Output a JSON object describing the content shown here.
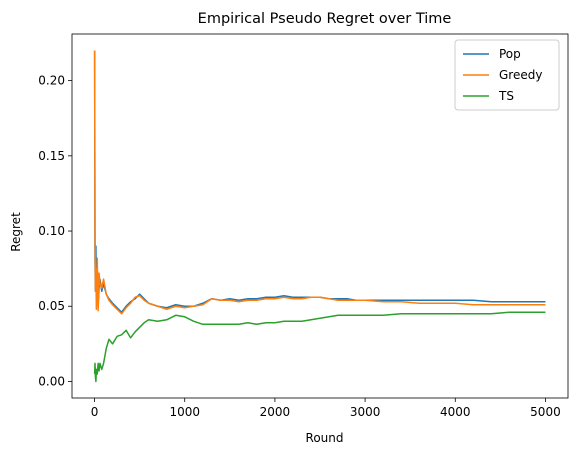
{
  "chart_data": {
    "type": "line",
    "title": "Empirical Pseudo Regret over Time",
    "xlabel": "Round",
    "ylabel": "Regret",
    "xlim": [
      -250,
      5250
    ],
    "ylim": [
      -0.011,
      0.231
    ],
    "xticks": [
      0,
      1000,
      2000,
      3000,
      4000,
      5000
    ],
    "xtick_labels": [
      "0",
      "1000",
      "2000",
      "3000",
      "4000",
      "5000"
    ],
    "yticks": [
      0.0,
      0.05,
      0.1,
      0.15,
      0.2
    ],
    "ytick_labels": [
      "0.00",
      "0.05",
      "0.10",
      "0.15",
      "0.20"
    ],
    "grid": false,
    "legend_position": "top-right",
    "series": [
      {
        "name": "Pop",
        "color": "#1f77b4",
        "x": [
          1,
          5,
          10,
          15,
          20,
          30,
          40,
          50,
          60,
          80,
          100,
          130,
          160,
          200,
          250,
          300,
          350,
          400,
          450,
          500,
          550,
          600,
          700,
          800,
          900,
          1000,
          1100,
          1200,
          1300,
          1400,
          1500,
          1600,
          1700,
          1800,
          1900,
          2000,
          2100,
          2200,
          2300,
          2400,
          2500,
          2600,
          2700,
          2800,
          2900,
          3000,
          3200,
          3400,
          3600,
          3800,
          4000,
          4200,
          4400,
          4600,
          4800,
          5000
        ],
        "y": [
          0.22,
          0.08,
          0.06,
          0.09,
          0.055,
          0.07,
          0.05,
          0.062,
          0.068,
          0.06,
          0.065,
          0.058,
          0.055,
          0.052,
          0.049,
          0.046,
          0.05,
          0.053,
          0.055,
          0.058,
          0.055,
          0.052,
          0.05,
          0.049,
          0.051,
          0.05,
          0.05,
          0.052,
          0.055,
          0.054,
          0.055,
          0.054,
          0.055,
          0.055,
          0.056,
          0.056,
          0.057,
          0.056,
          0.056,
          0.056,
          0.056,
          0.055,
          0.055,
          0.055,
          0.054,
          0.054,
          0.054,
          0.054,
          0.054,
          0.054,
          0.054,
          0.054,
          0.053,
          0.053,
          0.053,
          0.053
        ]
      },
      {
        "name": "Greedy",
        "color": "#ff7f0e",
        "x": [
          1,
          5,
          10,
          15,
          20,
          30,
          40,
          50,
          60,
          80,
          100,
          130,
          160,
          200,
          250,
          300,
          350,
          400,
          450,
          500,
          550,
          600,
          700,
          800,
          900,
          1000,
          1100,
          1200,
          1300,
          1400,
          1500,
          1600,
          1700,
          1800,
          1900,
          2000,
          2100,
          2200,
          2300,
          2400,
          2500,
          2600,
          2700,
          2800,
          2900,
          3000,
          3200,
          3400,
          3600,
          3800,
          4000,
          4200,
          4400,
          4600,
          4800,
          5000
        ],
        "y": [
          0.22,
          0.1,
          0.06,
          0.075,
          0.048,
          0.082,
          0.047,
          0.072,
          0.065,
          0.062,
          0.068,
          0.058,
          0.054,
          0.051,
          0.048,
          0.045,
          0.049,
          0.052,
          0.056,
          0.057,
          0.054,
          0.052,
          0.05,
          0.048,
          0.05,
          0.049,
          0.05,
          0.051,
          0.055,
          0.054,
          0.054,
          0.053,
          0.054,
          0.054,
          0.055,
          0.055,
          0.056,
          0.055,
          0.055,
          0.056,
          0.056,
          0.055,
          0.054,
          0.054,
          0.054,
          0.054,
          0.053,
          0.053,
          0.052,
          0.052,
          0.052,
          0.051,
          0.051,
          0.051,
          0.051,
          0.051
        ]
      },
      {
        "name": "TS",
        "color": "#2ca02c",
        "x": [
          1,
          5,
          10,
          15,
          20,
          30,
          40,
          50,
          60,
          80,
          100,
          130,
          160,
          200,
          250,
          300,
          350,
          400,
          450,
          500,
          550,
          600,
          700,
          800,
          900,
          1000,
          1100,
          1200,
          1300,
          1400,
          1500,
          1600,
          1700,
          1800,
          1900,
          2000,
          2100,
          2200,
          2300,
          2400,
          2500,
          2600,
          2700,
          2800,
          2900,
          3000,
          3200,
          3400,
          3600,
          3800,
          4000,
          4200,
          4400,
          4600,
          4800,
          5000
        ],
        "y": [
          0.005,
          0.012,
          0.003,
          0.0,
          0.008,
          0.005,
          0.012,
          0.007,
          0.012,
          0.008,
          0.012,
          0.022,
          0.028,
          0.025,
          0.03,
          0.031,
          0.034,
          0.029,
          0.033,
          0.036,
          0.039,
          0.041,
          0.04,
          0.041,
          0.044,
          0.043,
          0.04,
          0.038,
          0.038,
          0.038,
          0.038,
          0.038,
          0.039,
          0.038,
          0.039,
          0.039,
          0.04,
          0.04,
          0.04,
          0.041,
          0.042,
          0.043,
          0.044,
          0.044,
          0.044,
          0.044,
          0.044,
          0.045,
          0.045,
          0.045,
          0.045,
          0.045,
          0.045,
          0.046,
          0.046,
          0.046
        ]
      }
    ]
  }
}
